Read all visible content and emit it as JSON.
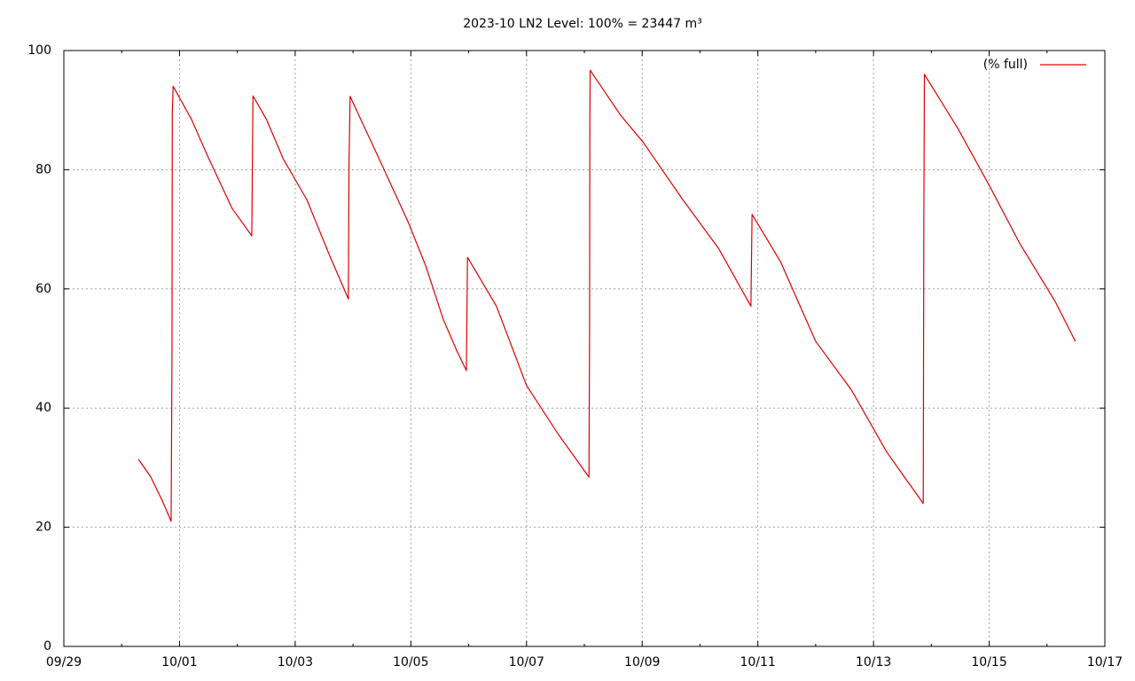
{
  "chart_data": {
    "type": "line",
    "title": "2023-10 LN2 Level: 100% = 23447 m³",
    "xlim": [
      0,
      18
    ],
    "xticks": [
      {
        "value": 0,
        "label": "09/29"
      },
      {
        "value": 2,
        "label": "10/01"
      },
      {
        "value": 4,
        "label": "10/03"
      },
      {
        "value": 6,
        "label": "10/05"
      },
      {
        "value": 8,
        "label": "10/07"
      },
      {
        "value": 10,
        "label": "10/09"
      },
      {
        "value": 12,
        "label": "10/11"
      },
      {
        "value": 14,
        "label": "10/13"
      },
      {
        "value": 16,
        "label": "10/15"
      },
      {
        "value": 18,
        "label": "10/17"
      }
    ],
    "ylim": [
      0,
      100
    ],
    "yticks": [
      0,
      20,
      40,
      60,
      80,
      100
    ],
    "grid": true,
    "legend": "top-right",
    "series": [
      {
        "name": "(% full)",
        "color": "#dd0000",
        "x": [
          1.29,
          1.5,
          1.7,
          1.855,
          1.87,
          1.875,
          1.89,
          2.21,
          2.5,
          2.91,
          3.25,
          3.27,
          3.5,
          3.8,
          4.2,
          4.6,
          4.92,
          4.93,
          4.95,
          5.49,
          5.95,
          6.26,
          6.56,
          6.8,
          6.96,
          6.98,
          7.48,
          8.0,
          8.55,
          9.08,
          9.09,
          9.095,
          9.1,
          9.63,
          10.01,
          10.7,
          11.32,
          11.88,
          11.9,
          12.39,
          13.0,
          13.62,
          14.23,
          14.86,
          14.87,
          14.88,
          15.46,
          16.01,
          16.53,
          17.14,
          17.49
        ],
        "values": [
          31.4,
          28.5,
          24.5,
          21.0,
          49.5,
          89.5,
          94.0,
          88.4,
          82.0,
          73.5,
          68.9,
          92.4,
          88.5,
          81.7,
          75.0,
          65.5,
          58.3,
          80.5,
          92.3,
          81.0,
          71.3,
          63.8,
          54.9,
          49.5,
          46.3,
          65.3,
          57.1,
          43.8,
          35.6,
          28.4,
          53.0,
          87.0,
          96.7,
          89.1,
          84.7,
          75.0,
          66.8,
          57.1,
          72.5,
          64.6,
          51.2,
          43.0,
          32.6,
          24.0,
          70.5,
          96.0,
          86.9,
          77.2,
          67.6,
          57.9,
          51.2
        ]
      }
    ]
  }
}
